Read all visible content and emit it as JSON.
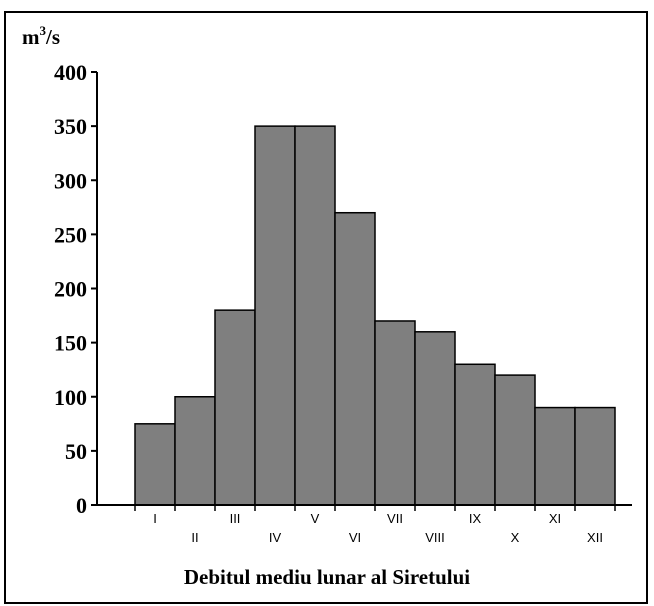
{
  "chart_data": {
    "type": "bar",
    "title": "Debitul mediu lunar al Siretului",
    "ylabel": {
      "base": "m",
      "sup": "3",
      "tail": "/s"
    },
    "categories": [
      "I",
      "II",
      "III",
      "IV",
      "V",
      "VI",
      "VII",
      "VIII",
      "IX",
      "X",
      "XI",
      "XII"
    ],
    "values": [
      75,
      100,
      180,
      350,
      350,
      270,
      170,
      160,
      130,
      120,
      90,
      90
    ],
    "ylim": [
      0,
      400
    ],
    "yticks": [
      "0",
      "50",
      "100",
      "150",
      "200",
      "250",
      "300",
      "350",
      "400"
    ],
    "grid": false,
    "legend": "none",
    "colors": {
      "bar_fill": "#7f7f7f",
      "bar_stroke": "#000000",
      "axis": "#000000"
    }
  }
}
